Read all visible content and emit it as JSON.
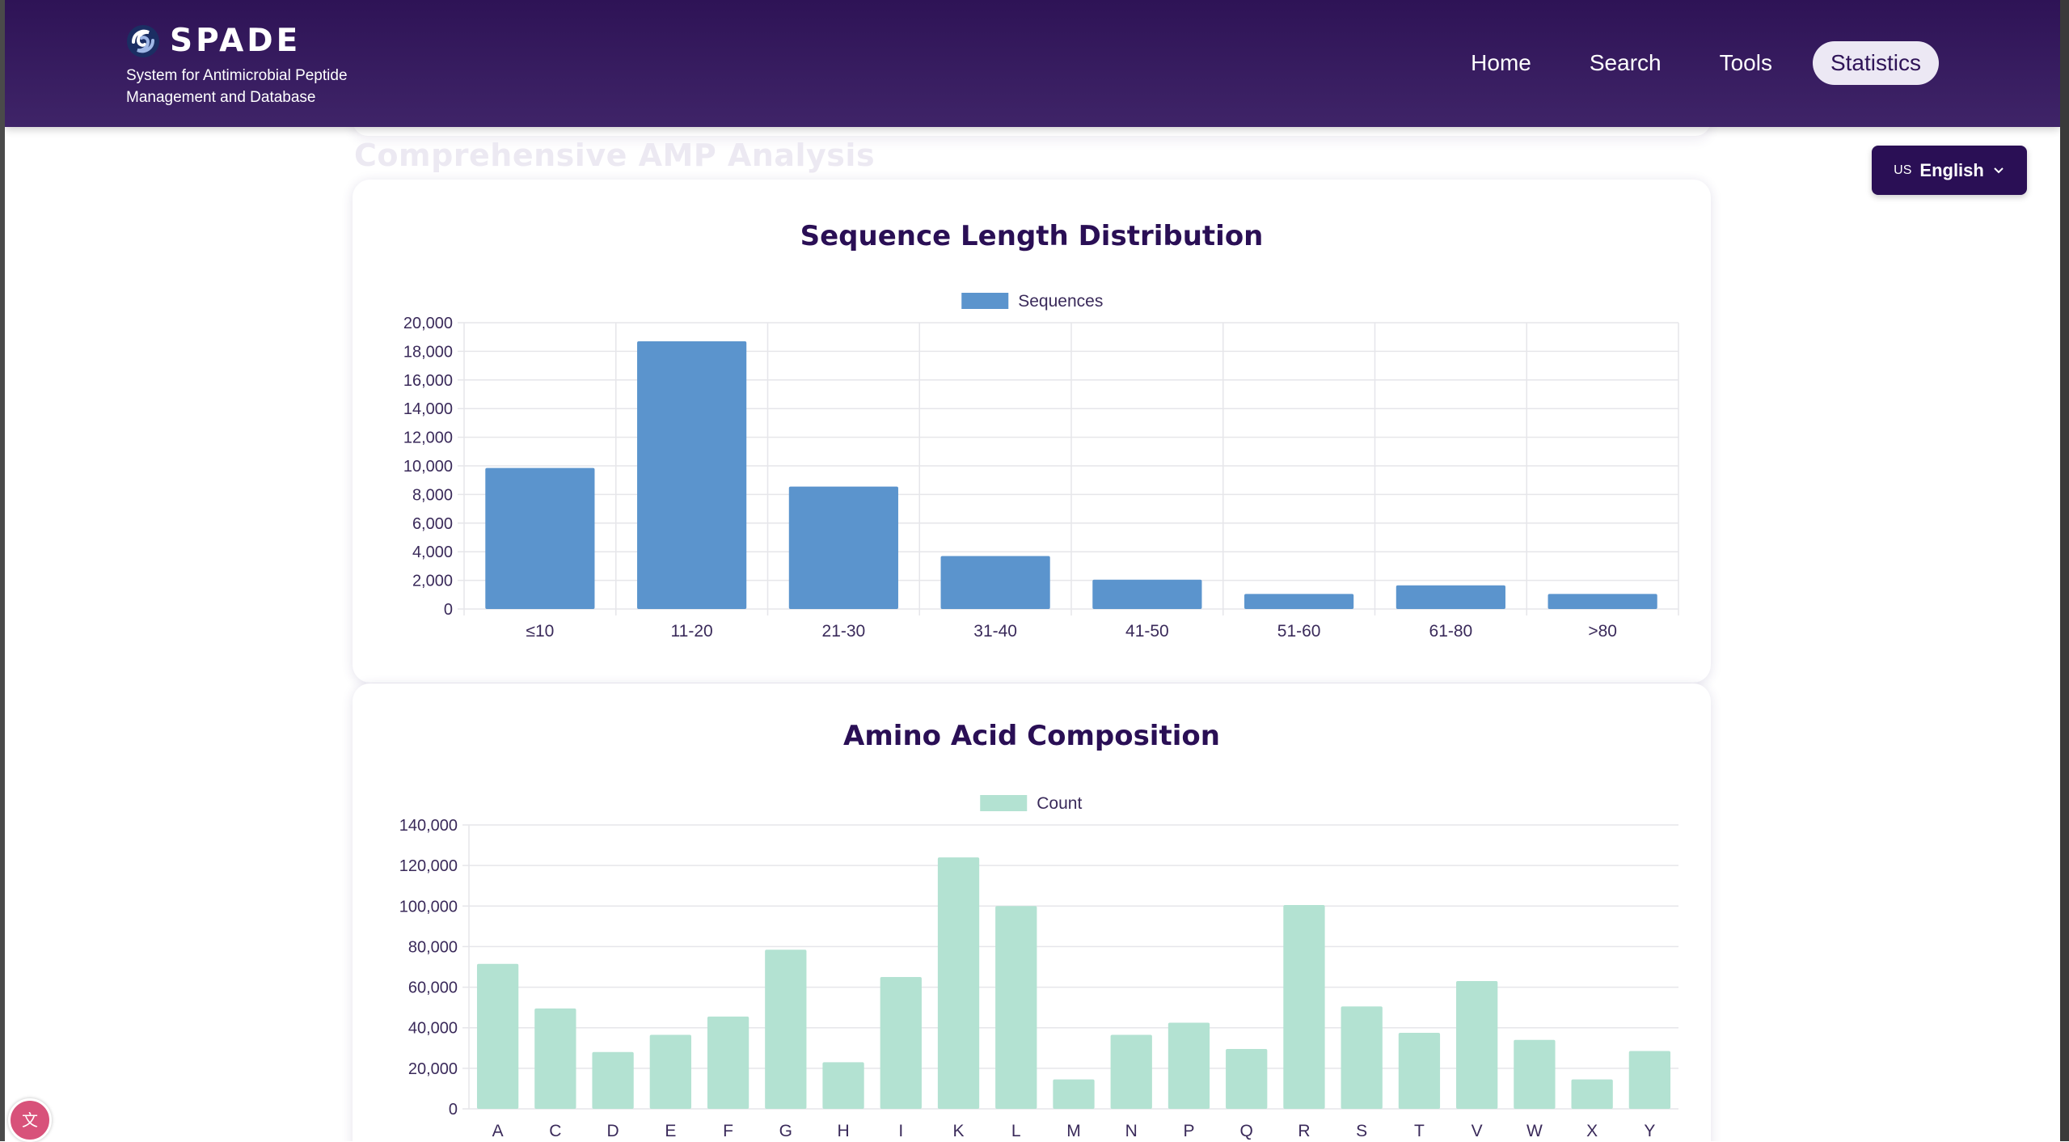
{
  "app": {
    "logo_text": "SPADE",
    "tagline": "System for Antimicrobial Peptide Management and Database"
  },
  "nav": {
    "items": [
      "Home",
      "Search",
      "Tools",
      "Statistics"
    ],
    "active": "Statistics"
  },
  "language": {
    "flag": "US",
    "label": "English"
  },
  "section_heading": "Comprehensive AMP Analysis",
  "colors": {
    "header": "#33185c",
    "bar_blue": "#5b94cd",
    "bar_mint": "#b3e2d2",
    "title": "#2a0f55"
  },
  "chart_data": [
    {
      "type": "bar",
      "title": "Sequence Length Distribution",
      "legend": "Sequences",
      "categories": [
        "≤10",
        "11-20",
        "21-30",
        "31-40",
        "41-50",
        "51-60",
        "61-80",
        ">80"
      ],
      "values": [
        9850,
        18700,
        8550,
        3700,
        2050,
        1050,
        1650,
        1050
      ],
      "ylim": [
        0,
        20000
      ],
      "yticks": [
        "20,000",
        "18,000",
        "16,000",
        "14,000",
        "12,000",
        "10,000",
        "8,000",
        "6,000",
        "4,000",
        "2,000",
        "0"
      ],
      "xlabel": "",
      "ylabel": ""
    },
    {
      "type": "bar",
      "title": "Amino Acid Composition",
      "legend": "Count",
      "categories": [
        "A",
        "C",
        "D",
        "E",
        "F",
        "G",
        "H",
        "I",
        "K",
        "L",
        "M",
        "N",
        "P",
        "Q",
        "R",
        "S",
        "T",
        "V",
        "W",
        "X",
        "Y"
      ],
      "values": [
        71500,
        49500,
        28000,
        36500,
        45500,
        78500,
        23000,
        65000,
        124000,
        100000,
        14500,
        36500,
        42500,
        29500,
        100500,
        50500,
        37500,
        63000,
        34000,
        14500,
        28500
      ],
      "ylim": [
        0,
        140000
      ],
      "yticks": [
        "140,000",
        "120,000",
        "100,000",
        "80,000",
        "60,000",
        "40,000",
        "20,000",
        "0"
      ],
      "xlabel": "",
      "ylabel": ""
    }
  ]
}
